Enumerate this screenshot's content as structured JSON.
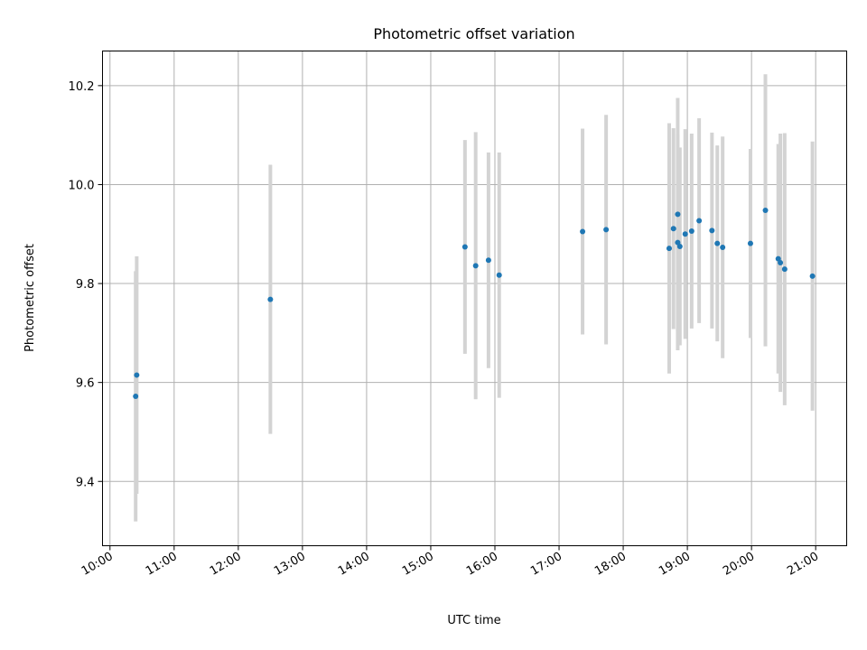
{
  "chart_data": {
    "type": "scatter",
    "title": "Photometric offset variation",
    "xlabel": "UTC time",
    "ylabel": "Photometric offset",
    "xlim": [
      "09:53",
      "21:29"
    ],
    "ylim": [
      9.27,
      10.27
    ],
    "x_ticks": [
      "10:00",
      "11:00",
      "12:00",
      "13:00",
      "14:00",
      "15:00",
      "16:00",
      "17:00",
      "18:00",
      "19:00",
      "20:00",
      "21:00"
    ],
    "y_ticks": [
      9.4,
      9.6,
      9.8,
      10.0,
      10.2
    ],
    "grid": true,
    "marker_color": "#1f77b4",
    "errorbar_color": "#d3d3d3",
    "points": [
      {
        "time": "10:24",
        "y": 9.572,
        "yerr": 0.253
      },
      {
        "time": "10:25",
        "y": 9.615,
        "yerr": 0.24
      },
      {
        "time": "12:30",
        "y": 9.768,
        "yerr": 0.272
      },
      {
        "time": "15:32",
        "y": 9.874,
        "yerr": 0.216
      },
      {
        "time": "15:42",
        "y": 9.836,
        "yerr": 0.27
      },
      {
        "time": "15:54",
        "y": 9.847,
        "yerr": 0.218
      },
      {
        "time": "16:04",
        "y": 9.817,
        "yerr": 0.248
      },
      {
        "time": "17:22",
        "y": 9.905,
        "yerr": 0.208
      },
      {
        "time": "17:44",
        "y": 9.909,
        "yerr": 0.232
      },
      {
        "time": "18:43",
        "y": 9.871,
        "yerr": 0.253
      },
      {
        "time": "18:47",
        "y": 9.911,
        "yerr": 0.203
      },
      {
        "time": "18:51",
        "y": 9.94,
        "yerr": 0.235
      },
      {
        "time": "18:51",
        "y": 9.883,
        "yerr": 0.218
      },
      {
        "time": "18:53",
        "y": 9.875,
        "yerr": 0.2
      },
      {
        "time": "18:58",
        "y": 9.9,
        "yerr": 0.212
      },
      {
        "time": "19:04",
        "y": 9.906,
        "yerr": 0.197
      },
      {
        "time": "19:11",
        "y": 9.927,
        "yerr": 0.207
      },
      {
        "time": "19:23",
        "y": 9.907,
        "yerr": 0.198
      },
      {
        "time": "19:28",
        "y": 9.881,
        "yerr": 0.198
      },
      {
        "time": "19:33",
        "y": 9.873,
        "yerr": 0.224
      },
      {
        "time": "19:59",
        "y": 9.881,
        "yerr": 0.191
      },
      {
        "time": "20:13",
        "y": 9.948,
        "yerr": 0.275
      },
      {
        "time": "20:25",
        "y": 9.85,
        "yerr": 0.232
      },
      {
        "time": "20:27",
        "y": 9.842,
        "yerr": 0.261
      },
      {
        "time": "20:31",
        "y": 9.829,
        "yerr": 0.275
      },
      {
        "time": "20:57",
        "y": 9.815,
        "yerr": 0.272
      }
    ]
  }
}
